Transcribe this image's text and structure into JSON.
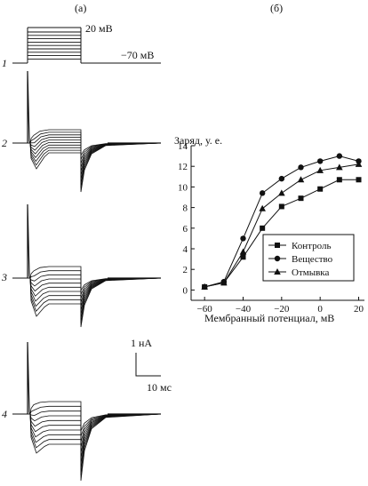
{
  "panel_a": {
    "label": "(a)",
    "trace_labels": [
      "1",
      "2",
      "3",
      "4"
    ],
    "protocol": {
      "step_label": "20 мВ",
      "holding_label": "−70 мВ"
    },
    "scale_bar": {
      "current_label": "1 нА",
      "time_label": "10 мс"
    }
  },
  "panel_b": {
    "label": "(б)"
  },
  "chart_data": {
    "type": "line",
    "title": "",
    "xlabel": "Мембранный потенциал, мВ",
    "ylabel": "Заряд, у. е.",
    "x_ticks": [
      -60,
      -40,
      -20,
      0,
      20
    ],
    "y_ticks": [
      0,
      2,
      4,
      6,
      8,
      10,
      12,
      14
    ],
    "xlim": [
      -67,
      23
    ],
    "ylim": [
      -1,
      14
    ],
    "legend_position": "lower-right",
    "series": [
      {
        "name": "Контроль",
        "marker": "square",
        "x": [
          -60,
          -50,
          -40,
          -30,
          -20,
          -10,
          0,
          10,
          20
        ],
        "y": [
          0.3,
          0.7,
          3.2,
          6.0,
          8.1,
          8.9,
          9.8,
          10.7,
          10.7
        ]
      },
      {
        "name": "Вещество",
        "marker": "circle",
        "x": [
          -60,
          -50,
          -40,
          -30,
          -20,
          -10,
          0,
          10,
          20
        ],
        "y": [
          0.3,
          0.8,
          5.0,
          9.4,
          10.8,
          11.9,
          12.5,
          13.0,
          12.5
        ]
      },
      {
        "name": "Отмывка",
        "marker": "triangle",
        "x": [
          -60,
          -50,
          -40,
          -30,
          -20,
          -10,
          0,
          10,
          20
        ],
        "y": [
          0.3,
          0.7,
          3.7,
          7.9,
          9.4,
          10.7,
          11.6,
          11.9,
          12.2
        ]
      }
    ]
  }
}
